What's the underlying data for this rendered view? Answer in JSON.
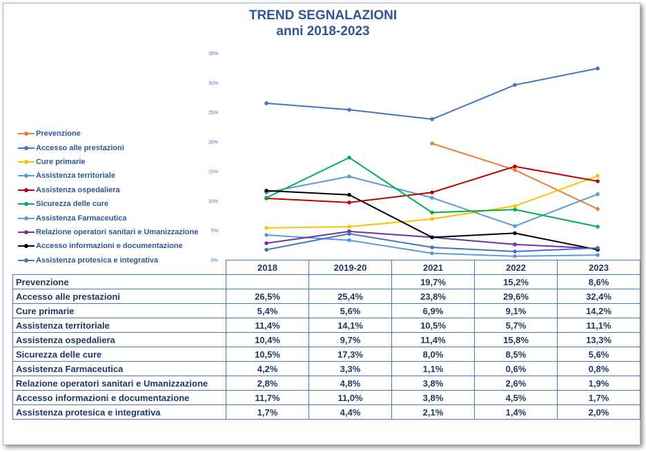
{
  "chart_data": {
    "type": "line",
    "title": "TREND  SEGNALAZIONI",
    "subtitle": "anni 2018-2023",
    "categories": [
      "2018",
      "2019-20",
      "2021",
      "2022",
      "2023"
    ],
    "ylim": [
      0,
      35
    ],
    "yticks": [
      "0%",
      "5%",
      "10%",
      "15%",
      "20%",
      "25%",
      "30%",
      "35%"
    ],
    "grid": false,
    "legend": "left",
    "series": [
      {
        "name": "Prevenzione",
        "color": "#ed7d31",
        "values": [
          null,
          null,
          19.7,
          15.2,
          8.6
        ],
        "labels": [
          "",
          "",
          "19,7%",
          "15,2%",
          "8,6%"
        ]
      },
      {
        "name": "Accesso alle prestazioni",
        "color": "#4472c4",
        "values": [
          26.5,
          25.4,
          23.8,
          29.6,
          32.4
        ],
        "labels": [
          "26,5%",
          "25,4%",
          "23,8%",
          "29,6%",
          "32,4%"
        ]
      },
      {
        "name": "Cure primarie",
        "color": "#ffc000",
        "values": [
          5.4,
          5.6,
          6.9,
          9.1,
          14.2
        ],
        "labels": [
          "5,4%",
          "5,6%",
          "6,9%",
          "9,1%",
          "14,2%"
        ]
      },
      {
        "name": "Assistenza territoriale",
        "color": "#5b9bd5",
        "values": [
          11.4,
          14.1,
          10.5,
          5.7,
          11.1
        ],
        "labels": [
          "11,4%",
          "14,1%",
          "10,5%",
          "5,7%",
          "11,1%"
        ]
      },
      {
        "name": "Assistenza ospedaliera",
        "color": "#c00000",
        "values": [
          10.4,
          9.7,
          11.4,
          15.8,
          13.3
        ],
        "labels": [
          "10,4%",
          "9,7%",
          "11,4%",
          "15,8%",
          "13,3%"
        ]
      },
      {
        "name": "Sicurezza delle cure",
        "color": "#00b050",
        "values": [
          10.5,
          17.3,
          8.0,
          8.5,
          5.6
        ],
        "labels": [
          "10,5%",
          "17,3%",
          "8,0%",
          "8,5%",
          "5,6%"
        ]
      },
      {
        "name": "Assistenza Farmaceutica",
        "color": "#5b9bd5",
        "values": [
          4.2,
          3.3,
          1.1,
          0.6,
          0.8
        ],
        "labels": [
          "4,2%",
          "3,3%",
          "1,1%",
          "0,6%",
          "0,8%"
        ]
      },
      {
        "name": "Relazione operatori sanitari e Umanizzazione",
        "color": "#7030a0",
        "values": [
          2.8,
          4.8,
          3.8,
          2.6,
          1.9
        ],
        "labels": [
          "2,8%",
          "4,8%",
          "3,8%",
          "2,6%",
          "1,9%"
        ]
      },
      {
        "name": "Accesso informazioni e documentazione",
        "color": "#000000",
        "values": [
          11.7,
          11.0,
          3.8,
          4.5,
          1.7
        ],
        "labels": [
          "11,7%",
          "11,0%",
          "3,8%",
          "4,5%",
          "1,7%"
        ]
      },
      {
        "name": "Assistenza protesica e integrativa",
        "color": "#4472c4",
        "values": [
          1.7,
          4.4,
          2.1,
          1.4,
          2.0
        ],
        "labels": [
          "1,7%",
          "4,4%",
          "2,1%",
          "1,4%",
          "2,0%"
        ]
      }
    ]
  }
}
